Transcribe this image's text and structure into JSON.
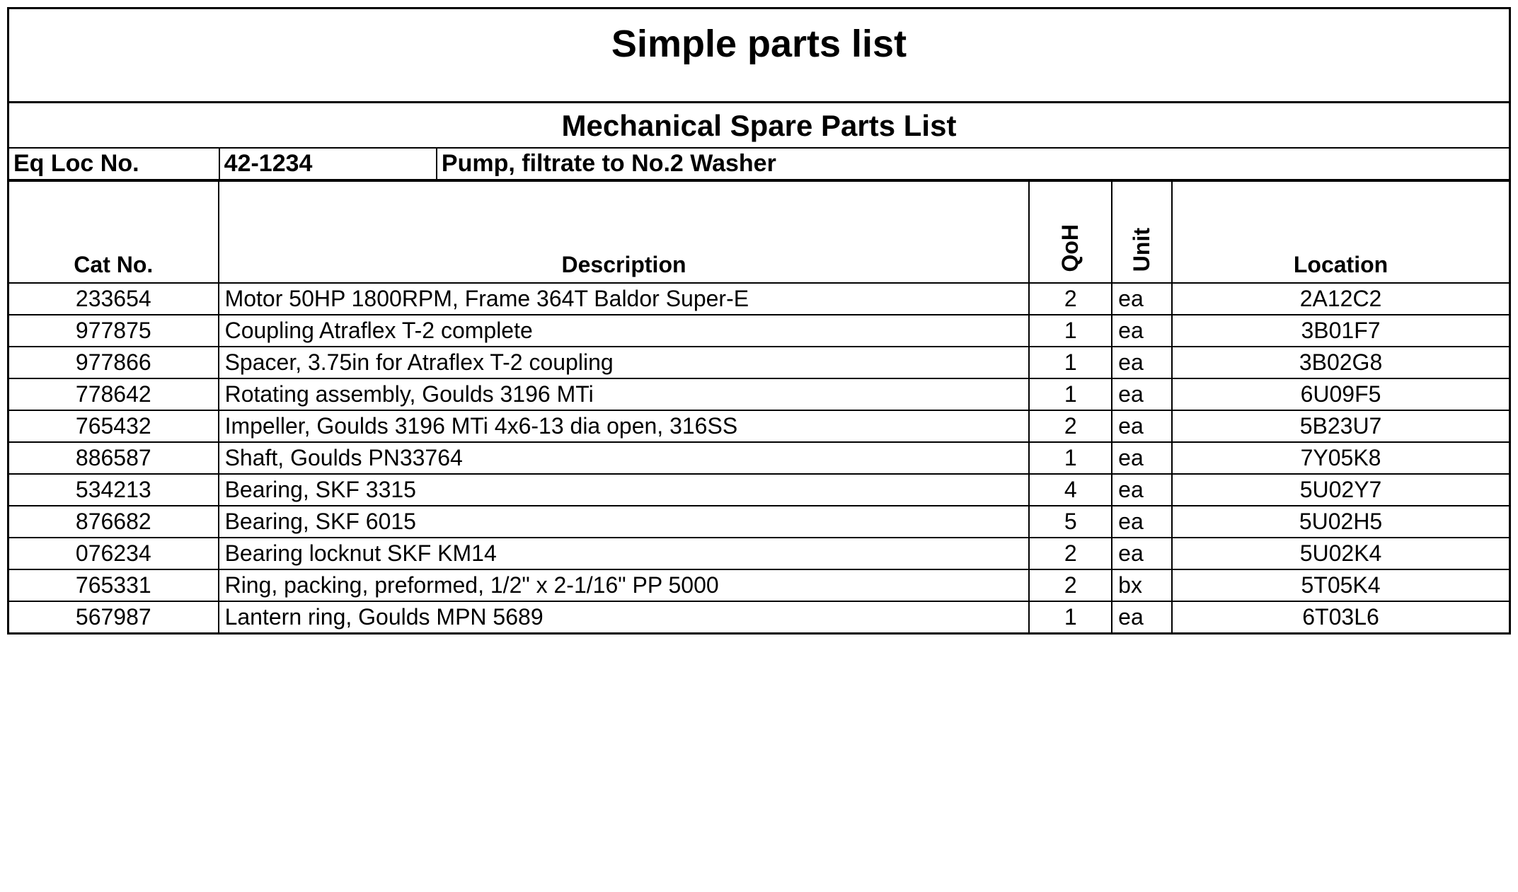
{
  "title": "Simple parts list",
  "subtitle": "Mechanical Spare Parts List",
  "equipment": {
    "label": "Eq Loc  No.",
    "number": "42-1234",
    "description": "Pump, filtrate to No.2 Washer"
  },
  "columns": {
    "catno": "Cat No.",
    "description": "Description",
    "qoh": "QoH",
    "unit": "Unit",
    "location": "Location"
  },
  "rows": [
    {
      "catno": "233654",
      "description": "Motor 50HP 1800RPM, Frame 364T Baldor Super-E",
      "qoh": "2",
      "unit": "ea",
      "location": "2A12C2"
    },
    {
      "catno": "977875",
      "description": "Coupling Atraflex T-2 complete",
      "qoh": "1",
      "unit": "ea",
      "location": "3B01F7"
    },
    {
      "catno": "977866",
      "description": "Spacer, 3.75in for Atraflex T-2 coupling",
      "qoh": "1",
      "unit": "ea",
      "location": "3B02G8"
    },
    {
      "catno": "778642",
      "description": "Rotating assembly, Goulds 3196 MTi",
      "qoh": "1",
      "unit": "ea",
      "location": "6U09F5"
    },
    {
      "catno": "765432",
      "description": "Impeller, Goulds 3196 MTi 4x6-13 dia open, 316SS",
      "qoh": "2",
      "unit": "ea",
      "location": "5B23U7"
    },
    {
      "catno": "886587",
      "description": "Shaft, Goulds PN33764",
      "qoh": "1",
      "unit": "ea",
      "location": "7Y05K8"
    },
    {
      "catno": "534213",
      "description": "Bearing, SKF 3315",
      "qoh": "4",
      "unit": "ea",
      "location": "5U02Y7"
    },
    {
      "catno": "876682",
      "description": "Bearing, SKF 6015",
      "qoh": "5",
      "unit": "ea",
      "location": "5U02H5"
    },
    {
      "catno": "076234",
      "description": "Bearing locknut SKF KM14",
      "qoh": "2",
      "unit": "ea",
      "location": "5U02K4"
    },
    {
      "catno": "765331",
      "description": "Ring, packing, preformed, 1/2\" x 2-1/16\" PP 5000",
      "qoh": "2",
      "unit": "bx",
      "location": "5T05K4"
    },
    {
      "catno": "567987",
      "description": "Lantern ring, Goulds MPN 5689",
      "qoh": "1",
      "unit": "ea",
      "location": "6T03L6"
    }
  ],
  "style": {
    "border_color": "#000000",
    "background_color": "#ffffff",
    "title_fontsize": 54,
    "subtitle_fontsize": 42,
    "header_fontsize": 32,
    "body_fontsize": 32
  }
}
